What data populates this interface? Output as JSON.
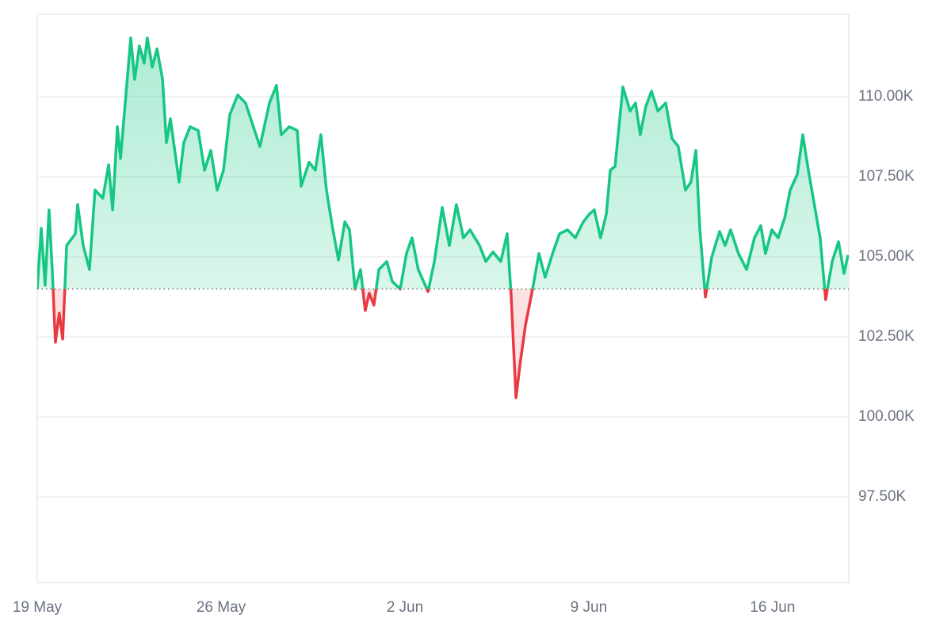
{
  "chart_data": {
    "type": "line",
    "x": [
      0,
      0.15,
      0.3,
      0.45,
      0.57,
      0.69,
      0.84,
      0.97,
      1.12,
      1.45,
      1.54,
      1.75,
      1.99,
      2.2,
      2.5,
      2.72,
      2.87,
      3.05,
      3.17,
      3.35,
      3.56,
      3.71,
      3.89,
      4.07,
      4.19,
      4.38,
      4.56,
      4.77,
      4.92,
      5.07,
      5.4,
      5.58,
      5.82,
      6.13,
      6.37,
      6.61,
      6.85,
      7.09,
      7.33,
      7.63,
      7.93,
      8.18,
      8.48,
      8.84,
      9.11,
      9.29,
      9.6,
      9.9,
      10.05,
      10.35,
      10.59,
      10.8,
      11.01,
      11.26,
      11.47,
      11.71,
      11.89,
      12.1,
      12.31,
      12.49,
      12.64,
      12.82,
      13.01,
      13.31,
      13.52,
      13.82,
      14.06,
      14.27,
      14.51,
      14.88,
      15.12,
      15.42,
      15.69,
      15.96,
      16.23,
      16.48,
      16.84,
      17.08,
      17.35,
      17.65,
      17.89,
      18.04,
      18.23,
      18.38,
      18.59,
      18.86,
      19.1,
      19.34,
      19.64,
      19.89,
      20.19,
      20.49,
      20.79,
      21.03,
      21.21,
      21.45,
      21.67,
      21.82,
      22,
      22.3,
      22.57,
      22.78,
      22.96,
      23.17,
      23.39,
      23.63,
      23.93,
      24.17,
      24.41,
      24.68,
      24.89,
      25.08,
      25.23,
      25.44,
      25.68,
      25.98,
      26.19,
      26.4,
      26.7,
      27.01,
      27.31,
      27.55,
      27.73,
      27.97,
      28.21,
      28.46,
      28.67,
      28.94,
      29.15,
      29.36,
      29.6,
      29.81,
      30.02,
      30.27,
      30.51,
      30.72,
      30.87
    ],
    "values": [
      103990,
      105890,
      104110,
      106460,
      104600,
      102330,
      103240,
      102430,
      105350,
      105720,
      106630,
      105350,
      104600,
      107080,
      106830,
      107870,
      106460,
      109060,
      108070,
      109800,
      111830,
      110540,
      111580,
      111040,
      111830,
      110920,
      111490,
      110540,
      108560,
      109310,
      107330,
      108560,
      109060,
      108940,
      107700,
      108320,
      107080,
      107700,
      109430,
      110050,
      109800,
      109180,
      108440,
      109800,
      110350,
      108810,
      109060,
      108940,
      107200,
      107950,
      107700,
      108810,
      107080,
      105840,
      104900,
      106090,
      105840,
      103990,
      104600,
      103320,
      103860,
      103490,
      104600,
      104850,
      104230,
      103990,
      105100,
      105590,
      104600,
      103910,
      104850,
      106540,
      105350,
      106630,
      105590,
      105840,
      105350,
      104850,
      105150,
      104850,
      105720,
      103860,
      100600,
      101630,
      102870,
      103990,
      105100,
      104360,
      105150,
      105720,
      105840,
      105590,
      106090,
      106340,
      106460,
      105590,
      106340,
      107700,
      107820,
      110300,
      109550,
      109800,
      108810,
      109680,
      110170,
      109550,
      109800,
      108690,
      108440,
      107080,
      107330,
      108320,
      105840,
      103740,
      104980,
      105790,
      105350,
      105840,
      105100,
      104600,
      105590,
      105970,
      105100,
      105840,
      105590,
      106210,
      107080,
      107570,
      108810,
      107700,
      106580,
      105590,
      103660,
      104850,
      105470,
      104480,
      105050
    ],
    "baseline": 103990,
    "up_color": "#16c784",
    "down_color": "#ea3943",
    "xlim": [
      0,
      30.9
    ],
    "xticks": [
      {
        "value": 0,
        "label": "19 May"
      },
      {
        "value": 7,
        "label": "26 May"
      },
      {
        "value": 14,
        "label": "2 Jun"
      },
      {
        "value": 21,
        "label": "9 Jun"
      },
      {
        "value": 28,
        "label": "16 Jun"
      }
    ],
    "ylim": [
      94830,
      112570
    ],
    "yticks": [
      {
        "value": 97500,
        "label": "97.50K"
      },
      {
        "value": 100000,
        "label": "100.00K"
      },
      {
        "value": 102500,
        "label": "102.50K"
      },
      {
        "value": 105000,
        "label": "105.00K"
      },
      {
        "value": 107500,
        "label": "107.50K"
      },
      {
        "value": 110000,
        "label": "110.00K"
      }
    ],
    "grid": true
  }
}
